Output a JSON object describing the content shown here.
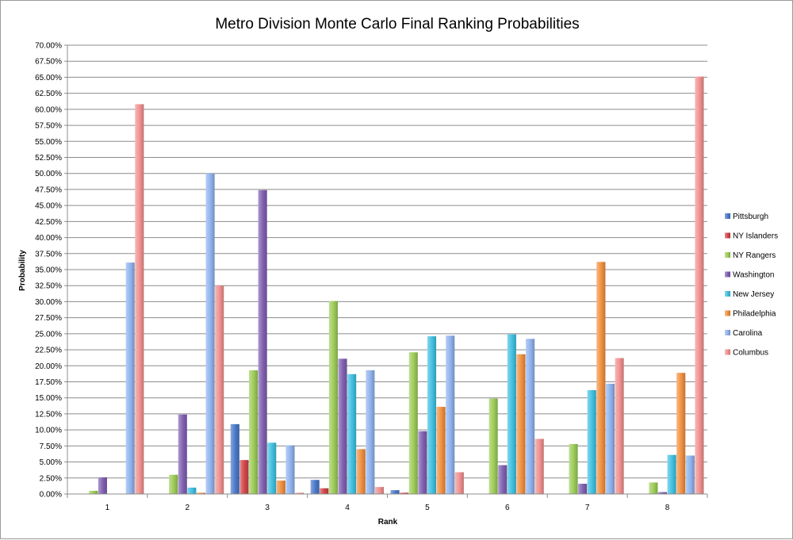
{
  "chart_data": {
    "type": "bar",
    "title": "Metro Division Monte Carlo Final Ranking Probabilities",
    "xlabel": "Rank",
    "ylabel": "Probability",
    "ylim": [
      0,
      70
    ],
    "ytick_step": 2.5,
    "ytick_format": "percent_2dp",
    "grid": "horizontal",
    "legend_position": "right",
    "categories": [
      "1",
      "2",
      "3",
      "4",
      "5",
      "6",
      "7",
      "8"
    ],
    "series": [
      {
        "name": "Pittsburgh",
        "color": "#4a78c8",
        "values": [
          0,
          0,
          10.9,
          2.2,
          0.6,
          0,
          0,
          0
        ]
      },
      {
        "name": "NY Islanders",
        "color": "#d0464a",
        "values": [
          0,
          0,
          5.3,
          0.9,
          0.2,
          0,
          0,
          0
        ]
      },
      {
        "name": "NY Rangers",
        "color": "#9ccc58",
        "values": [
          0.5,
          3.0,
          19.3,
          30.1,
          22.1,
          14.9,
          7.8,
          1.8
        ]
      },
      {
        "name": "Washington",
        "color": "#8060b0",
        "values": [
          2.6,
          12.4,
          47.4,
          21.1,
          9.8,
          4.5,
          1.6,
          0.3
        ]
      },
      {
        "name": "New Jersey",
        "color": "#40c0e0",
        "values": [
          0,
          1.0,
          8.0,
          18.7,
          24.6,
          24.9,
          16.2,
          6.1
        ]
      },
      {
        "name": "Philadelphia",
        "color": "#f09040",
        "values": [
          0,
          0.2,
          2.1,
          7.0,
          13.6,
          21.8,
          36.2,
          18.9
        ]
      },
      {
        "name": "Carolina",
        "color": "#8fb2ec",
        "values": [
          36.1,
          50.0,
          7.6,
          19.3,
          24.7,
          24.2,
          17.2,
          6.0
        ]
      },
      {
        "name": "Columbus",
        "color": "#f09090",
        "values": [
          60.8,
          32.5,
          0.2,
          1.1,
          3.4,
          8.6,
          21.2,
          65.1
        ]
      }
    ]
  }
}
